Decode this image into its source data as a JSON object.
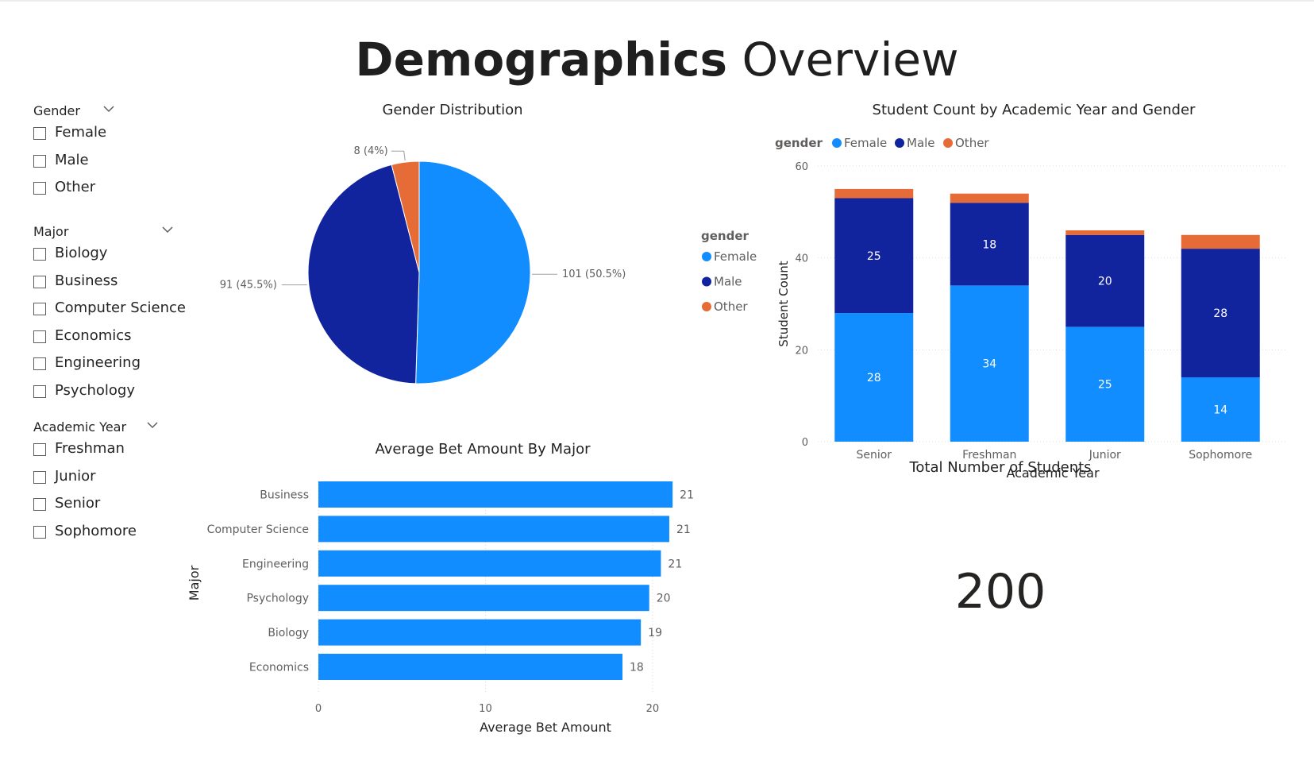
{
  "page": {
    "title_bold": "Demographics",
    "title_rest": "Overview"
  },
  "slicers": {
    "gender": {
      "title": "Gender",
      "options": [
        "Female",
        "Male",
        "Other"
      ]
    },
    "major": {
      "title": "Major",
      "options": [
        "Biology",
        "Business",
        "Computer Science",
        "Economics",
        "Engineering",
        "Psychology"
      ]
    },
    "academic_year": {
      "title": "Academic Year",
      "options": [
        "Freshman",
        "Junior",
        "Senior",
        "Sophomore"
      ]
    }
  },
  "colors": {
    "female": "#118DFF",
    "male": "#12239E",
    "other": "#E66C37",
    "text": "#252423",
    "muted": "#605E5C",
    "grid": "#D9D9D9"
  },
  "kpi": {
    "label": "Total Number of Students",
    "value": "200"
  },
  "chart_data": [
    {
      "id": "gender-distribution",
      "type": "pie",
      "title": "Gender Distribution",
      "legend_title": "gender",
      "legend_position": "right",
      "slices": [
        {
          "name": "Female",
          "value": 101,
          "label": "101 (50.5%)",
          "color": "#118DFF"
        },
        {
          "name": "Male",
          "value": 91,
          "label": "91 (45.5%)",
          "color": "#12239E"
        },
        {
          "name": "Other",
          "value": 8,
          "label": "8 (4%)",
          "color": "#E66C37"
        }
      ]
    },
    {
      "id": "student-count-by-year",
      "type": "bar",
      "stacked": true,
      "title": "Student Count by Academic Year and Gender",
      "xlabel": "Academic Year",
      "ylabel": "Student Count",
      "ylim": [
        0,
        60
      ],
      "yticks": [
        0,
        20,
        40,
        60
      ],
      "grid": true,
      "legend_title": "gender",
      "legend_position": "top-left",
      "categories": [
        "Senior",
        "Freshman",
        "Junior",
        "Sophomore"
      ],
      "series": [
        {
          "name": "Female",
          "values": [
            28,
            34,
            25,
            14
          ],
          "color": "#118DFF"
        },
        {
          "name": "Male",
          "values": [
            25,
            18,
            20,
            28
          ],
          "color": "#12239E"
        },
        {
          "name": "Other",
          "values": [
            2,
            2,
            1,
            3
          ],
          "color": "#E66C37"
        }
      ],
      "data_labels": {
        "Female": [
          "28",
          "34",
          "25",
          "14"
        ],
        "Male": [
          "25",
          "18",
          "20",
          "28"
        ]
      }
    },
    {
      "id": "avg-bet-by-major",
      "type": "bar",
      "orientation": "horizontal",
      "title": "Average Bet Amount By Major",
      "xlabel": "Average Bet Amount",
      "ylabel": "Major",
      "xlim": [
        0,
        22
      ],
      "xticks": [
        0,
        10,
        20
      ],
      "grid": true,
      "categories": [
        "Business",
        "Computer Science",
        "Engineering",
        "Psychology",
        "Biology",
        "Economics"
      ],
      "values": [
        21.2,
        21.0,
        20.5,
        19.8,
        19.3,
        18.2
      ],
      "data_labels": [
        "21",
        "21",
        "21",
        "20",
        "19",
        "18"
      ],
      "color": "#118DFF"
    }
  ]
}
